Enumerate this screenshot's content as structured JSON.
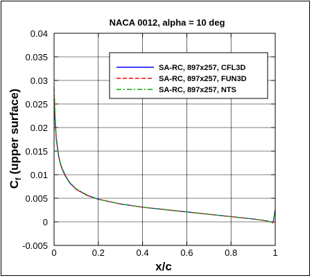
{
  "chart_data": {
    "type": "line",
    "title": "NACA 0012, alpha = 10 deg",
    "xlabel": "x/c",
    "ylabel_main": "C",
    "ylabel_sub": "f",
    "ylabel_rest": " (upper surface)",
    "xlim": [
      0,
      1
    ],
    "ylim": [
      -0.005,
      0.04
    ],
    "x_ticks": [
      "0",
      "0.2",
      "0.4",
      "0.6",
      "0.8",
      "1"
    ],
    "x_tick_values": [
      0,
      0.2,
      0.4,
      0.6,
      0.8,
      1
    ],
    "y_ticks": [
      "-0.005",
      "0",
      "0.005",
      "0.01",
      "0.015",
      "0.02",
      "0.025",
      "0.03",
      "0.035",
      "0.04"
    ],
    "y_tick_values": [
      -0.005,
      0,
      0.005,
      0.01,
      0.015,
      0.02,
      0.025,
      0.03,
      0.035,
      0.04
    ],
    "grid": true,
    "legend_position": "top-right",
    "x": [
      0,
      0.002,
      0.005,
      0.01,
      0.02,
      0.03,
      0.04,
      0.05,
      0.07,
      0.1,
      0.15,
      0.2,
      0.3,
      0.4,
      0.5,
      0.6,
      0.7,
      0.8,
      0.9,
      0.95,
      0.98,
      0.99,
      1.0
    ],
    "series": [
      {
        "name": "SA-RC, 897x257, CFL3D",
        "color": "#0000ff",
        "dash": "solid",
        "values": [
          0.026,
          0.024,
          0.021,
          0.0175,
          0.014,
          0.012,
          0.0108,
          0.0098,
          0.0083,
          0.0069,
          0.0056,
          0.0048,
          0.0038,
          0.0031,
          0.0026,
          0.0021,
          0.0016,
          0.0011,
          0.0006,
          0.0003,
          0.0,
          -0.0002,
          0.0026
        ]
      },
      {
        "name": "SA-RC, 897x257, FUN3D",
        "color": "#ff0000",
        "dash": "dashed",
        "values": [
          0.027,
          0.025,
          0.0215,
          0.0178,
          0.0142,
          0.0121,
          0.0109,
          0.0099,
          0.0084,
          0.0069,
          0.0056,
          0.0048,
          0.0038,
          0.0031,
          0.0026,
          0.0021,
          0.0016,
          0.0011,
          0.0006,
          0.0003,
          0.0,
          -0.0002,
          0.0025
        ]
      },
      {
        "name": "SA-RC, 897x257, NTS",
        "color": "#00aa00",
        "dash": "dashdot",
        "values": [
          0.0285,
          0.026,
          0.022,
          0.018,
          0.0143,
          0.0122,
          0.011,
          0.01,
          0.0084,
          0.007,
          0.0057,
          0.0048,
          0.0038,
          0.0031,
          0.0026,
          0.0021,
          0.0016,
          0.0011,
          0.0006,
          0.0003,
          0.0,
          -0.0002,
          0.0024
        ]
      }
    ]
  }
}
